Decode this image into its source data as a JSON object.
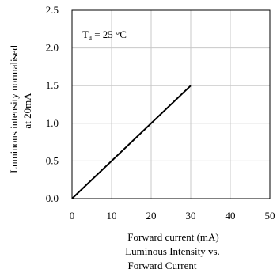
{
  "chart_data": {
    "type": "line",
    "title": "",
    "caption": [
      "Luminous Intensity vs.",
      "Forward Current"
    ],
    "xlabel": "Forward current (mA)",
    "ylabel": [
      "Luminous intensity normalised",
      "at 20mA"
    ],
    "xlim": [
      0,
      50
    ],
    "ylim": [
      0,
      2.5
    ],
    "x_ticks": [
      0,
      10,
      20,
      30,
      40,
      50
    ],
    "x_tick_labels": [
      "0",
      "10",
      "20",
      "30",
      "40",
      "50"
    ],
    "y_ticks": [
      0,
      0.5,
      1.0,
      1.5,
      2.0,
      2.5
    ],
    "y_tick_labels": [
      "0.0",
      "0.5",
      "1.0",
      "1.5",
      "2.0",
      "2.5"
    ],
    "grid": true,
    "annotation": {
      "main": "T",
      "sub": "a",
      "rest": " = 25 °C"
    },
    "series": [
      {
        "x": [
          0,
          30
        ],
        "y": [
          0,
          1.5
        ]
      }
    ]
  }
}
